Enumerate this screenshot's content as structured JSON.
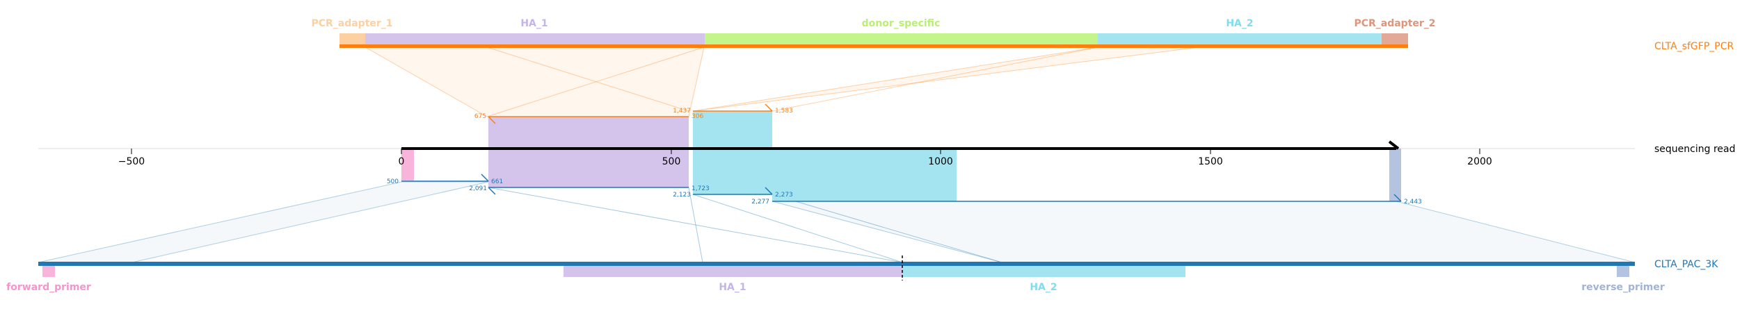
{
  "colors": {
    "orange": "#ff7f0e",
    "blue": "#1f77b4",
    "pcr_adapter_1": "#fdd0a2",
    "ha_1": "#d4c4ec",
    "donor_specific": "#c4f58a",
    "ha_2": "#a4e4f0",
    "pcr_adapter_2": "#e2aa96",
    "forward_primer": "#f9b4dc",
    "reverse_primer": "#b4c4e0",
    "pcr_adapter_1_text": "#fdd0a2",
    "ha_1_text": "#c4b4ec",
    "donor_specific_text": "#b8f070",
    "ha_2_text": "#80dcef",
    "pcr_adapter_2_text": "#e0957a",
    "forward_primer_text": "#f694cf",
    "reverse_primer_text": "#a0b4d8"
  },
  "tracks": {
    "top": {
      "name": "CLTA_sfGFP_PCR",
      "features": [
        {
          "label": "PCR_adapter_1",
          "key": "pcr_adapter_1"
        },
        {
          "label": "HA_1",
          "key": "ha_1"
        },
        {
          "label": "donor_specific",
          "key": "donor_specific"
        },
        {
          "label": "HA_2",
          "key": "ha_2"
        },
        {
          "label": "PCR_adapter_2",
          "key": "pcr_adapter_2"
        }
      ]
    },
    "read": {
      "name": "sequencing read",
      "ticks": [
        "−500",
        "0",
        "500",
        "1000",
        "1500",
        "2000"
      ]
    },
    "bottom": {
      "name": "CLTA_PAC_3K",
      "features": [
        {
          "label": "forward_primer",
          "key": "forward_primer"
        },
        {
          "label": "HA_1",
          "key": "ha_1"
        },
        {
          "label": "HA_2",
          "key": "ha_2"
        },
        {
          "label": "reverse_primer",
          "key": "reverse_primer"
        }
      ]
    }
  },
  "alignments": {
    "top": [
      {
        "start": "675",
        "end": "1,437"
      },
      {
        "start": "1,437",
        "end": "1,583"
      },
      {
        "inner": "306"
      }
    ],
    "bottom": [
      {
        "start": "500",
        "end": "661"
      },
      {
        "start": "2,091",
        "end": "1,723"
      },
      {
        "start": "2,123",
        "end": "2,273"
      },
      {
        "start": "2,277",
        "end": "2,443"
      }
    ]
  }
}
